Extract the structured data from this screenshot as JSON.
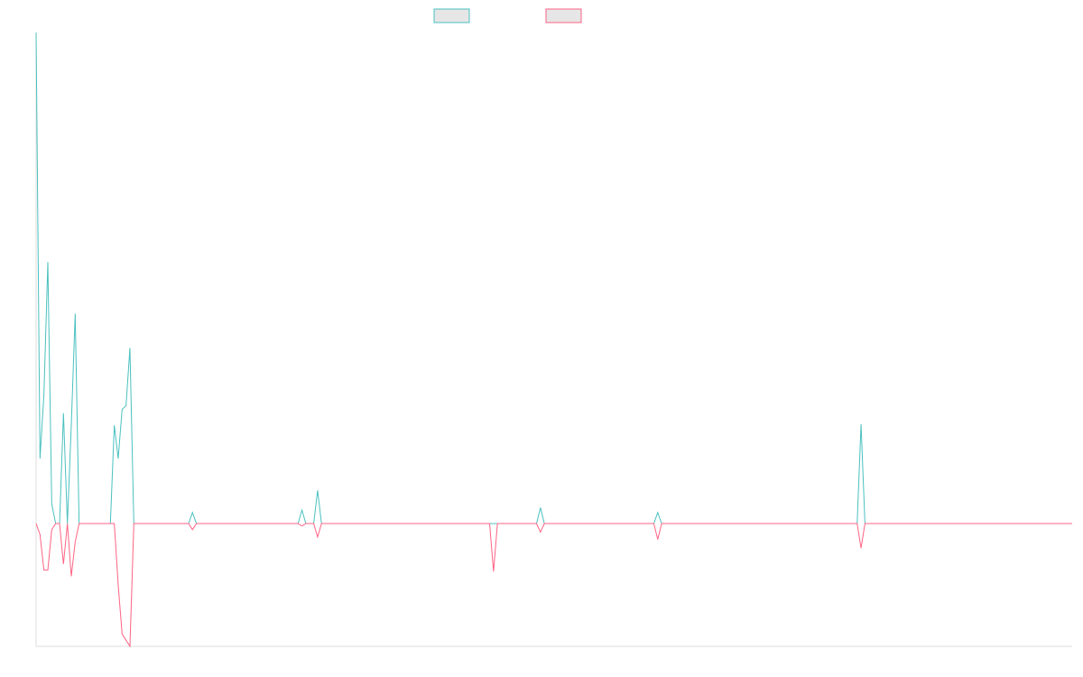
{
  "chart_data": {
    "type": "line",
    "title": "",
    "xlabel": "",
    "ylabel": "",
    "x_count": 266,
    "ylim": [
      -1,
      4
    ],
    "grid": false,
    "legend_position": "top-center",
    "series": [
      {
        "color": "#4bc0c0",
        "legend_fill": "#e6e6e6",
        "spikes": [
          [
            0,
            4.0
          ],
          [
            1,
            0.53
          ],
          [
            2,
            1.05
          ],
          [
            3,
            2.13
          ],
          [
            4,
            0.16
          ],
          [
            5,
            0.0
          ],
          [
            6,
            0.0
          ],
          [
            7,
            0.9
          ],
          [
            8,
            0.0
          ],
          [
            9,
            0.8
          ],
          [
            10,
            1.71
          ],
          [
            11,
            0.0
          ],
          [
            12,
            0.0
          ],
          [
            13,
            0.0
          ],
          [
            14,
            0.0
          ],
          [
            15,
            0.0
          ],
          [
            16,
            0.0
          ],
          [
            17,
            0.0
          ],
          [
            18,
            0.0
          ],
          [
            19,
            0.0
          ],
          [
            20,
            0.8
          ],
          [
            21,
            0.53
          ],
          [
            22,
            0.93
          ],
          [
            23,
            0.96
          ],
          [
            24,
            1.43
          ],
          [
            25,
            0.0
          ],
          [
            29,
            0.0
          ],
          [
            39,
            0.0
          ],
          [
            40,
            0.09
          ],
          [
            41,
            0.0
          ],
          [
            67,
            0.0
          ],
          [
            68,
            0.11
          ],
          [
            69,
            0.0
          ],
          [
            71,
            0.0
          ],
          [
            72,
            0.27
          ],
          [
            73,
            0.0
          ],
          [
            116,
            0.0
          ],
          [
            117,
            0.0
          ],
          [
            118,
            0.0
          ],
          [
            128,
            0.0
          ],
          [
            129,
            0.13
          ],
          [
            130,
            0.0
          ],
          [
            158,
            0.0
          ],
          [
            159,
            0.09
          ],
          [
            160,
            0.0
          ],
          [
            210,
            0.0
          ],
          [
            211,
            0.81
          ],
          [
            212,
            0.0
          ],
          [
            265,
            0.0
          ]
        ]
      },
      {
        "color": "#ff6384",
        "legend_fill": "#e6e6e6",
        "spikes": [
          [
            0,
            0.0
          ],
          [
            1,
            -0.09
          ],
          [
            2,
            -0.38
          ],
          [
            3,
            -0.38
          ],
          [
            4,
            -0.05
          ],
          [
            5,
            0.0
          ],
          [
            6,
            0.0
          ],
          [
            7,
            -0.33
          ],
          [
            8,
            0.0
          ],
          [
            9,
            -0.43
          ],
          [
            10,
            -0.15
          ],
          [
            11,
            0.0
          ],
          [
            12,
            0.0
          ],
          [
            13,
            0.0
          ],
          [
            14,
            0.0
          ],
          [
            15,
            0.0
          ],
          [
            16,
            0.0
          ],
          [
            17,
            0.0
          ],
          [
            18,
            0.0
          ],
          [
            19,
            0.0
          ],
          [
            20,
            0.0
          ],
          [
            21,
            -0.5
          ],
          [
            22,
            -0.9
          ],
          [
            23,
            -0.95
          ],
          [
            24,
            -1.0
          ],
          [
            25,
            0.0
          ],
          [
            29,
            0.0
          ],
          [
            39,
            0.0
          ],
          [
            40,
            -0.05
          ],
          [
            41,
            0.0
          ],
          [
            67,
            0.0
          ],
          [
            68,
            -0.02
          ],
          [
            69,
            0.0
          ],
          [
            71,
            0.0
          ],
          [
            72,
            -0.11
          ],
          [
            73,
            0.0
          ],
          [
            116,
            0.0
          ],
          [
            117,
            -0.39
          ],
          [
            118,
            0.0
          ],
          [
            128,
            0.0
          ],
          [
            129,
            -0.07
          ],
          [
            130,
            0.0
          ],
          [
            158,
            0.0
          ],
          [
            159,
            -0.13
          ],
          [
            160,
            0.0
          ],
          [
            210,
            0.0
          ],
          [
            211,
            -0.2
          ],
          [
            212,
            0.0
          ],
          [
            265,
            0.0
          ]
        ]
      }
    ]
  }
}
